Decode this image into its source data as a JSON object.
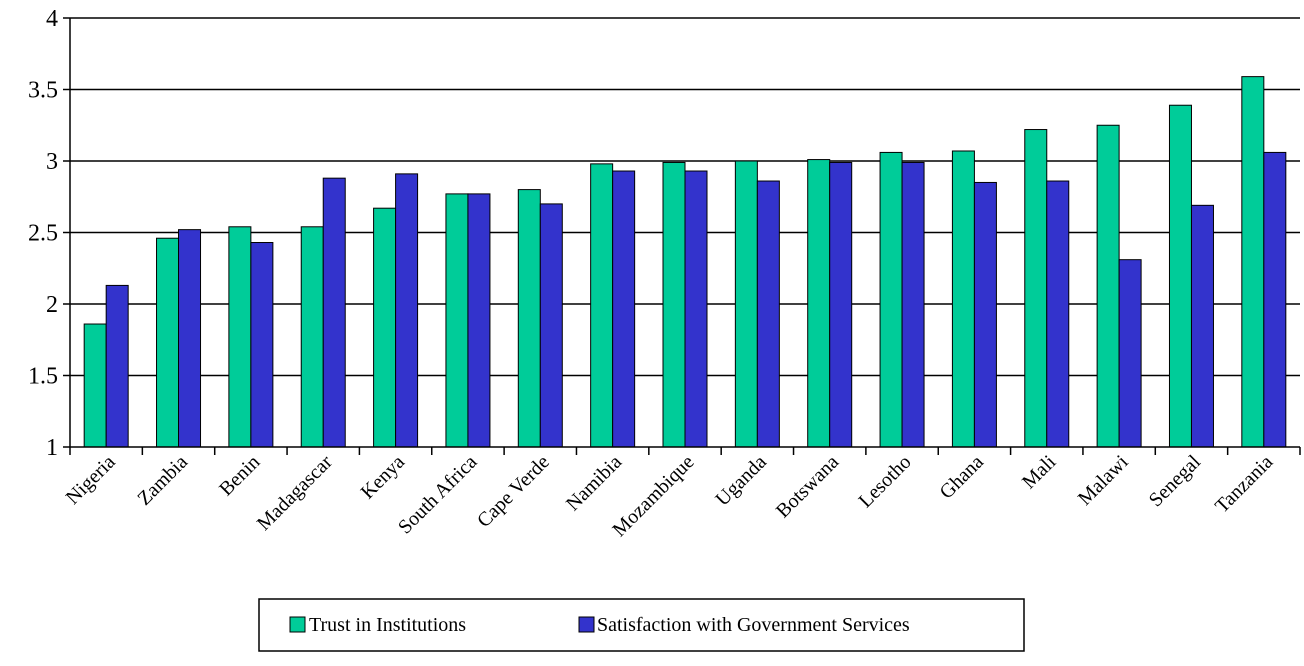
{
  "chart_data": {
    "type": "bar",
    "categories": [
      "Nigeria",
      "Zambia",
      "Benin",
      "Madagascar",
      "Kenya",
      "South Africa",
      "Cape Verde",
      "Namibia",
      "Mozambique",
      "Uganda",
      "Botswana",
      "Lesotho",
      "Ghana",
      "Mali",
      "Malawi",
      "Senegal",
      "Tanzania"
    ],
    "series": [
      {
        "name": "Trust in Institutions",
        "color": "#00cc99",
        "values": [
          1.86,
          2.46,
          2.54,
          2.54,
          2.67,
          2.77,
          2.8,
          2.98,
          2.99,
          3.0,
          3.01,
          3.06,
          3.07,
          3.22,
          3.25,
          3.39,
          3.59
        ]
      },
      {
        "name": "Satisfaction with Government Services",
        "color": "#3333cc",
        "values": [
          2.13,
          2.52,
          2.43,
          2.88,
          2.91,
          2.77,
          2.7,
          2.93,
          2.93,
          2.86,
          2.99,
          2.99,
          2.85,
          2.86,
          2.31,
          2.69,
          3.06
        ]
      }
    ],
    "title": "",
    "xlabel": "",
    "ylabel": "",
    "ylim": [
      1,
      4
    ],
    "yticks": [
      "1",
      "1.5",
      "2",
      "2.5",
      "3",
      "3.5",
      "4"
    ],
    "grid": true,
    "legend_position": "bottom"
  }
}
